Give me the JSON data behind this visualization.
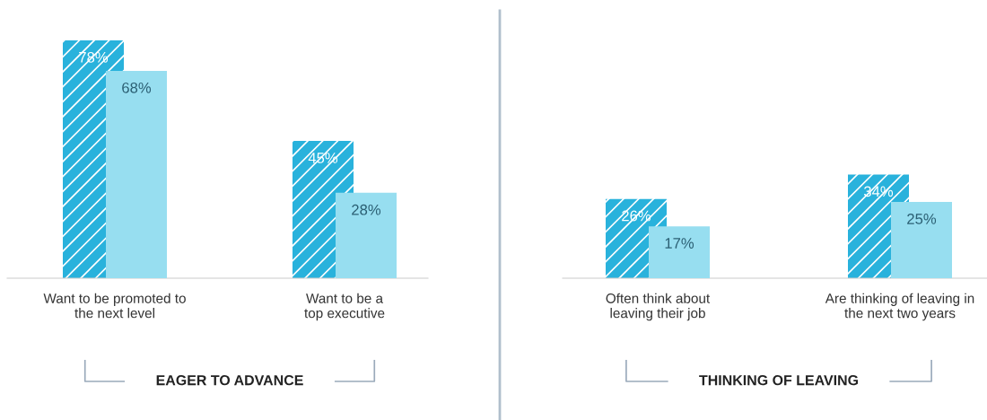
{
  "chart_data": [
    {
      "type": "bar",
      "categories": [
        "Want to be promoted to\nthe next level",
        "Want to be a\ntop executive"
      ],
      "series": [
        {
          "color": "#29b2dc",
          "values": [
            78,
            45
          ],
          "value_labels": [
            "78%",
            "45%"
          ]
        },
        {
          "color": "#97def0",
          "values": [
            68,
            28
          ],
          "value_labels": [
            "68%",
            "28%"
          ]
        }
      ],
      "tick_labels": "x",
      "annotations": [
        "EAGER TO ADVANCE"
      ]
    },
    {
      "type": "bar",
      "categories": [
        "Often think about\nleaving their job",
        "Are thinking of leaving in\nthe next two years"
      ],
      "series": [
        {
          "color": "#29b2dc",
          "values": [
            26,
            34
          ],
          "value_labels": [
            "26%",
            "34%"
          ]
        },
        {
          "color": "#97def0",
          "values": [
            17,
            25
          ],
          "value_labels": [
            "17%",
            "25%"
          ]
        }
      ],
      "tick_labels": "x",
      "annotations": [
        "THINKING OF LEAVING"
      ]
    }
  ]
}
